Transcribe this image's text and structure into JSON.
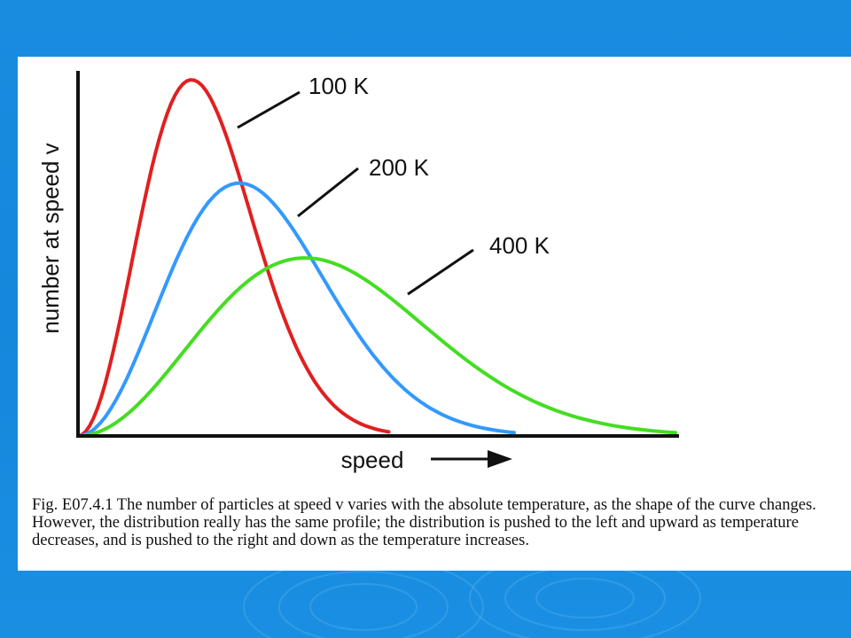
{
  "colors": {
    "background": "#1587dc",
    "panel": "#ffffff",
    "axis": "#111111",
    "series_100K": "#e02020",
    "series_200K": "#3399ff",
    "series_400K": "#44dd22"
  },
  "caption": "Fig. E07.4.1 The number of particles at speed v varies with the absolute temperature, as the shape of the curve changes. However, the distribution really has the same profile; the distribution is pushed to the left and upward as temperature decreases, and is pushed to the right and down as the temperature increases.",
  "chart_data": {
    "type": "line",
    "title": "",
    "xlabel": "speed",
    "ylabel": "number at speed v",
    "xlim": [
      0,
      10
    ],
    "ylim": [
      0,
      1
    ],
    "grid": false,
    "axis_ticks": false,
    "series": [
      {
        "name": "100 K",
        "color": "#e02020",
        "peak_x": 1.9,
        "peak_y": 1.0,
        "x_end": 5.2
      },
      {
        "name": "200 K",
        "color": "#3399ff",
        "peak_x": 2.7,
        "peak_y": 0.71,
        "x_end": 7.3
      },
      {
        "name": "400 K",
        "color": "#44dd22",
        "peak_x": 3.8,
        "peak_y": 0.5,
        "x_end": 10.0
      }
    ],
    "annotations": [
      "100 K",
      "200 K",
      "400 K"
    ]
  }
}
